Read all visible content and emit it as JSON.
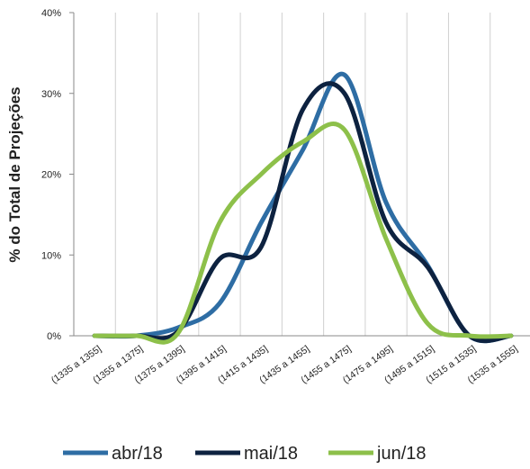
{
  "chart_data": {
    "type": "line",
    "y_label": "% do Total de Projeções",
    "categories": [
      "(1335 a 1355]",
      "(1355 a 1375]",
      "(1375 a 1395]",
      "(1395 a 1415]",
      "(1415 a 1435]",
      "(1435 a 1455]",
      "(1455 a 1475]",
      "(1475 a 1495]",
      "(1495 a 1515]",
      "(1515 a 1535]",
      "(1535 a 1555]"
    ],
    "series": [
      {
        "name": "abr/18",
        "color": "#2e6da4",
        "values": [
          0,
          0,
          1,
          4,
          14,
          23,
          32.3,
          16.5,
          8.7,
          0,
          0
        ]
      },
      {
        "name": "mai/18",
        "color": "#0d2240",
        "values": [
          0,
          0,
          0.5,
          9.5,
          11,
          28,
          30,
          14,
          8.5,
          0,
          0
        ]
      },
      {
        "name": "jun/18",
        "color": "#8dc04a",
        "values": [
          0,
          0,
          0.3,
          14,
          20,
          24,
          25.5,
          12,
          1.5,
          0,
          0
        ]
      }
    ],
    "ylim": [
      0,
      40
    ],
    "yticks": [
      {
        "value": 0,
        "label": "0%"
      },
      {
        "value": 10,
        "label": "10%"
      },
      {
        "value": 20,
        "label": "20%"
      },
      {
        "value": 30,
        "label": "30%"
      },
      {
        "value": 40,
        "label": "40%"
      }
    ],
    "grid": true,
    "smooth": true,
    "legend": "bottom"
  }
}
